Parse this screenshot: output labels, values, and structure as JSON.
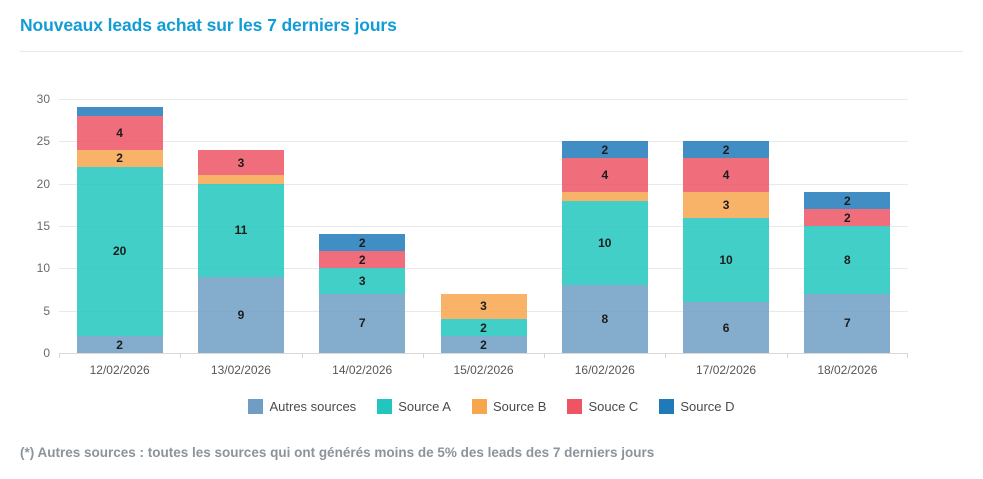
{
  "header": {
    "title": "Nouveaux leads achat sur les 7 derniers jours"
  },
  "chart_data": {
    "type": "bar",
    "stacked": true,
    "title": "Nouveaux leads achat sur les 7 derniers jours",
    "categories": [
      "12/02/2026",
      "13/02/2026",
      "14/02/2026",
      "15/02/2026",
      "16/02/2026",
      "17/02/2026",
      "18/02/2026"
    ],
    "series": [
      {
        "name": "Autres sources",
        "color": "#6f9dc3",
        "values": [
          2,
          9,
          7,
          2,
          8,
          6,
          7
        ]
      },
      {
        "name": "Source A",
        "color": "#21c7be",
        "values": [
          20,
          11,
          3,
          2,
          10,
          10,
          8
        ]
      },
      {
        "name": "Source B",
        "color": "#f7a64e",
        "values": [
          2,
          1,
          0,
          3,
          1,
          3,
          0
        ]
      },
      {
        "name": "Souce C",
        "color": "#ed5565",
        "values": [
          4,
          3,
          2,
          0,
          4,
          4,
          2
        ]
      },
      {
        "name": "Source D",
        "color": "#1e7ab8",
        "values": [
          1,
          0,
          2,
          0,
          2,
          2,
          2
        ]
      }
    ],
    "totals": [
      29,
      24,
      14,
      7,
      25,
      25,
      19
    ],
    "ylim": [
      0,
      30
    ],
    "yticks": [
      0,
      5,
      10,
      15,
      20,
      25,
      30
    ],
    "grid": true,
    "legend_position": "bottom",
    "bar_label_min_value": 2
  },
  "footnote": "(*) Autres sources : toutes les sources qui ont générés moins de 5% des leads des 7 derniers jours"
}
